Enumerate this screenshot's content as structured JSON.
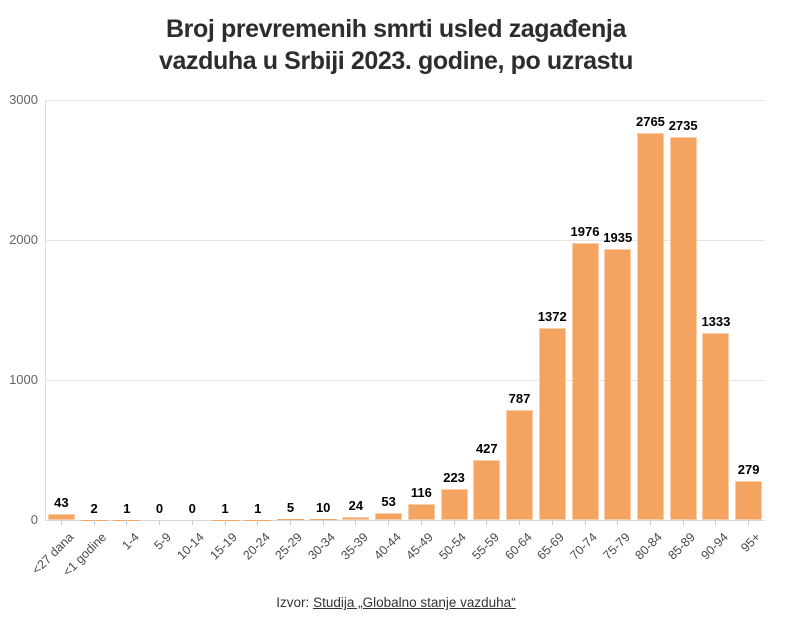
{
  "title": {
    "line1": "Broj prevremenih smrti usled zagađenja",
    "line2": "vazduha u Srbiji 2023. godine, po uzrastu"
  },
  "chart_data": {
    "type": "bar",
    "title": "Broj prevremenih smrti usled zagađenja vazduha u Srbiji 2023. godine, po uzrastu",
    "categories": [
      "<27 dana",
      "<1 godine",
      "1-4",
      "5-9",
      "10-14",
      "15-19",
      "20-24",
      "25-29",
      "30-34",
      "35-39",
      "40-44",
      "45-49",
      "50-54",
      "55-59",
      "60-64",
      "65-69",
      "70-74",
      "75-79",
      "80-84",
      "85-89",
      "90-94",
      "95+"
    ],
    "values": [
      43,
      2,
      1,
      0,
      0,
      1,
      1,
      5,
      10,
      24,
      53,
      116,
      223,
      427,
      787,
      1372,
      1976,
      1935,
      2765,
      2735,
      1333,
      279
    ],
    "xlabel": "",
    "ylabel": "",
    "ylim": [
      0,
      3000
    ],
    "yticks": [
      0,
      1000,
      2000,
      3000
    ],
    "grid": true,
    "legend": "none",
    "data_labels": true,
    "bar_color": "#f4a460",
    "gridline_color": "#e4e4e4",
    "value_label_color": "#000000",
    "y_label_color": "#666666",
    "x_label_color": "#4a4a4a"
  },
  "footer": {
    "prefix": "Izvor:",
    "link_text": "Studija „Globalno stanje vazduha“"
  }
}
